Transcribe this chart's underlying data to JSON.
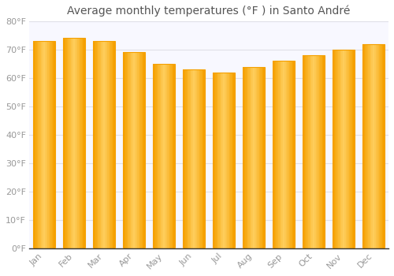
{
  "title": "Average monthly temperatures (°F ) in Santo André",
  "months": [
    "Jan",
    "Feb",
    "Mar",
    "Apr",
    "May",
    "Jun",
    "Jul",
    "Aug",
    "Sep",
    "Oct",
    "Nov",
    "Dec"
  ],
  "values": [
    73,
    74,
    73,
    69,
    65,
    63,
    62,
    64,
    66,
    68,
    70,
    72
  ],
  "bar_color_center": "#FFD060",
  "bar_color_edge": "#F5A000",
  "background_color": "#FFFFFF",
  "plot_bg_color": "#F8F8FF",
  "grid_color": "#E0E0E8",
  "ylim": [
    0,
    80
  ],
  "yticks": [
    0,
    10,
    20,
    30,
    40,
    50,
    60,
    70,
    80
  ],
  "title_fontsize": 10,
  "tick_fontsize": 8,
  "tick_color": "#999999"
}
